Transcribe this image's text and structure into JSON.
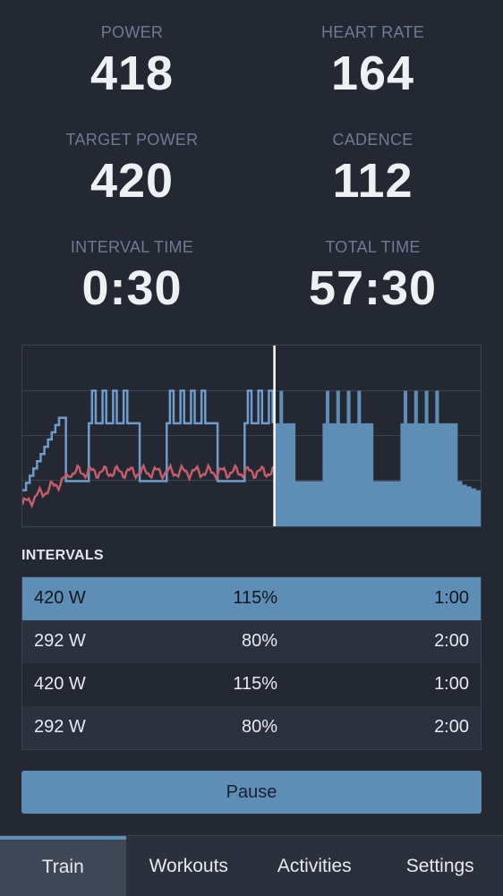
{
  "metrics": [
    {
      "label": "POWER",
      "value": "418"
    },
    {
      "label": "HEART RATE",
      "value": "164"
    },
    {
      "label": "TARGET POWER",
      "value": "420"
    },
    {
      "label": "CADENCE",
      "value": "112"
    },
    {
      "label": "INTERVAL TIME",
      "value": "0:30"
    },
    {
      "label": "TOTAL TIME",
      "value": "57:30"
    }
  ],
  "chart_data": {
    "type": "area",
    "title": "",
    "xlabel": "",
    "ylabel": "",
    "grid": true,
    "xlim": [
      0,
      100
    ],
    "ylim": [
      0,
      100
    ],
    "current_position": 55,
    "colors": {
      "target": "#5e8db5",
      "power": "#6f9ccd",
      "heart_rate": "#c45c6a",
      "marker": "#ffffff"
    },
    "target_profile": [
      [
        0,
        20
      ],
      [
        0.8,
        20
      ],
      [
        0.8,
        24
      ],
      [
        1.6,
        24
      ],
      [
        1.6,
        28
      ],
      [
        2.4,
        28
      ],
      [
        2.4,
        32
      ],
      [
        3.2,
        32
      ],
      [
        3.2,
        36
      ],
      [
        4.0,
        36
      ],
      [
        4.0,
        40
      ],
      [
        4.8,
        40
      ],
      [
        4.8,
        44
      ],
      [
        5.6,
        44
      ],
      [
        5.6,
        48
      ],
      [
        6.4,
        48
      ],
      [
        6.4,
        52
      ],
      [
        7.2,
        52
      ],
      [
        7.2,
        56
      ],
      [
        8.0,
        56
      ],
      [
        8.0,
        60
      ],
      [
        9.5,
        60
      ],
      [
        9.5,
        25
      ],
      [
        14.5,
        25
      ],
      [
        14.5,
        57
      ],
      [
        15.2,
        57
      ],
      [
        15.2,
        75
      ],
      [
        16.0,
        75
      ],
      [
        16.0,
        57
      ],
      [
        17.5,
        57
      ],
      [
        17.5,
        75
      ],
      [
        18.3,
        75
      ],
      [
        18.3,
        57
      ],
      [
        19.8,
        57
      ],
      [
        19.8,
        75
      ],
      [
        20.6,
        75
      ],
      [
        20.6,
        57
      ],
      [
        22.1,
        57
      ],
      [
        22.1,
        75
      ],
      [
        22.9,
        75
      ],
      [
        22.9,
        57
      ],
      [
        25.6,
        57
      ],
      [
        25.6,
        25
      ],
      [
        31.5,
        25
      ],
      [
        31.5,
        57
      ],
      [
        32.2,
        57
      ],
      [
        32.2,
        75
      ],
      [
        33.0,
        75
      ],
      [
        33.0,
        57
      ],
      [
        34.5,
        57
      ],
      [
        34.5,
        75
      ],
      [
        35.3,
        75
      ],
      [
        35.3,
        57
      ],
      [
        36.8,
        57
      ],
      [
        36.8,
        75
      ],
      [
        37.6,
        75
      ],
      [
        37.6,
        57
      ],
      [
        39.1,
        57
      ],
      [
        39.1,
        75
      ],
      [
        39.9,
        75
      ],
      [
        39.9,
        57
      ],
      [
        42.6,
        57
      ],
      [
        42.6,
        25
      ],
      [
        48.5,
        25
      ],
      [
        48.5,
        57
      ],
      [
        49.2,
        57
      ],
      [
        49.2,
        75
      ],
      [
        50.0,
        75
      ],
      [
        50.0,
        57
      ],
      [
        51.5,
        57
      ],
      [
        51.5,
        75
      ],
      [
        52.3,
        75
      ],
      [
        52.3,
        57
      ],
      [
        53.8,
        57
      ],
      [
        53.8,
        75
      ],
      [
        54.6,
        75
      ],
      [
        54.6,
        57
      ],
      [
        56.1,
        57
      ],
      [
        56.1,
        75
      ],
      [
        56.9,
        75
      ],
      [
        56.9,
        57
      ],
      [
        59.6,
        57
      ],
      [
        59.6,
        25
      ],
      [
        65.5,
        25
      ],
      [
        65.5,
        57
      ],
      [
        66.2,
        57
      ],
      [
        66.2,
        75
      ],
      [
        67.0,
        75
      ],
      [
        67.0,
        57
      ],
      [
        68.5,
        57
      ],
      [
        68.5,
        75
      ],
      [
        69.3,
        75
      ],
      [
        69.3,
        57
      ],
      [
        70.8,
        57
      ],
      [
        70.8,
        75
      ],
      [
        71.6,
        75
      ],
      [
        71.6,
        57
      ],
      [
        73.1,
        57
      ],
      [
        73.1,
        75
      ],
      [
        73.9,
        75
      ],
      [
        73.9,
        57
      ],
      [
        76.6,
        57
      ],
      [
        76.6,
        25
      ],
      [
        82.5,
        25
      ],
      [
        82.5,
        57
      ],
      [
        83.2,
        57
      ],
      [
        83.2,
        75
      ],
      [
        84.0,
        75
      ],
      [
        84.0,
        57
      ],
      [
        85.5,
        57
      ],
      [
        85.5,
        75
      ],
      [
        86.3,
        75
      ],
      [
        86.3,
        57
      ],
      [
        87.8,
        57
      ],
      [
        87.8,
        75
      ],
      [
        88.6,
        75
      ],
      [
        88.6,
        57
      ],
      [
        90.1,
        57
      ],
      [
        90.1,
        75
      ],
      [
        90.9,
        75
      ],
      [
        90.9,
        57
      ],
      [
        95.0,
        57
      ],
      [
        95.0,
        25
      ],
      [
        96.0,
        25
      ],
      [
        96.0,
        23
      ],
      [
        97.0,
        23
      ],
      [
        97.0,
        22
      ],
      [
        98.0,
        22
      ],
      [
        98.0,
        21
      ],
      [
        99.0,
        21
      ],
      [
        99.0,
        20
      ],
      [
        100,
        20
      ]
    ]
  },
  "intervals": {
    "title": "INTERVALS",
    "rows": [
      {
        "power": "420 W",
        "percent": "115%",
        "duration": "1:00"
      },
      {
        "power": "292 W",
        "percent": "80%",
        "duration": "2:00"
      },
      {
        "power": "420 W",
        "percent": "115%",
        "duration": "1:00"
      },
      {
        "power": "292 W",
        "percent": "80%",
        "duration": "2:00"
      }
    ]
  },
  "pause_label": "Pause",
  "tabs": [
    "Train",
    "Workouts",
    "Activities",
    "Settings"
  ]
}
